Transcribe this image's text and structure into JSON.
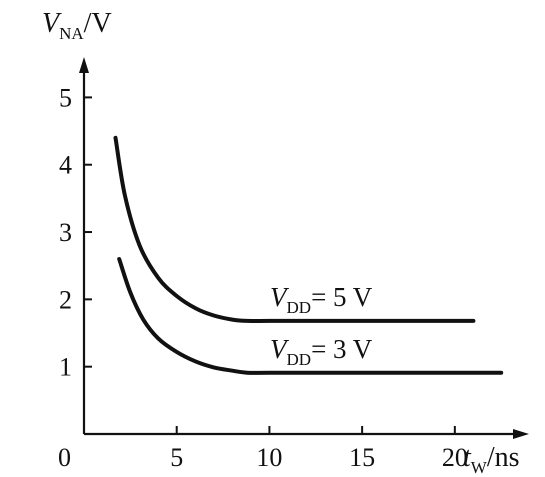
{
  "chart_data": {
    "type": "line",
    "title": "",
    "xlabel": {
      "main": "t",
      "sub": "W",
      "unit": "/ns"
    },
    "ylabel": {
      "main": "V",
      "sub": "NA",
      "unit": "/V"
    },
    "origin_label": "0",
    "xlim": [
      0,
      24
    ],
    "ylim": [
      0,
      5.6
    ],
    "xticks": [
      5,
      10,
      15,
      20
    ],
    "yticks": [
      1,
      2,
      3,
      4,
      5
    ],
    "grid": false,
    "series": [
      {
        "name": "V_DD = 5 V",
        "label": {
          "main": "V",
          "sub": "DD",
          "rest": "= 5 V"
        },
        "x": [
          1.7,
          2.2,
          3.0,
          4.0,
          5.0,
          6.0,
          7.0,
          8.0,
          8.8,
          10.0,
          12.0,
          15.0,
          18.0,
          21.0
        ],
        "y": [
          4.4,
          3.55,
          2.8,
          2.32,
          2.05,
          1.87,
          1.76,
          1.7,
          1.68,
          1.68,
          1.68,
          1.68,
          1.68,
          1.68
        ]
      },
      {
        "name": "V_DD = 3 V",
        "label": {
          "main": "V",
          "sub": "DD",
          "rest": "= 3 V"
        },
        "x": [
          1.9,
          2.5,
          3.2,
          4.0,
          5.0,
          6.0,
          7.0,
          8.0,
          8.8,
          10.0,
          13.0,
          16.0,
          19.0,
          22.5
        ],
        "y": [
          2.6,
          2.1,
          1.7,
          1.42,
          1.22,
          1.08,
          0.99,
          0.94,
          0.91,
          0.91,
          0.91,
          0.91,
          0.91,
          0.91
        ]
      }
    ]
  }
}
